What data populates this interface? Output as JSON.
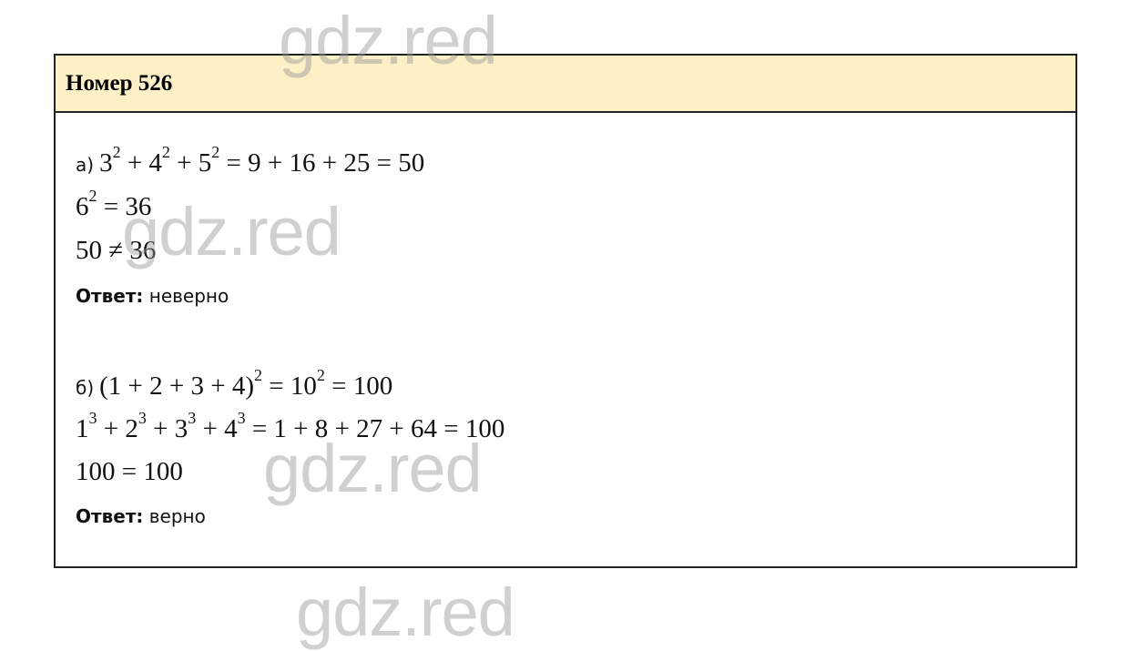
{
  "header": {
    "title": "Номер 526"
  },
  "parts": [
    {
      "label": "а)",
      "lines": [
        [
          {
            "t": "3",
            "sup": "2"
          },
          {
            "t": " + 4",
            "sup": "2"
          },
          {
            "t": " + 5",
            "sup": "2"
          },
          {
            "t": " = 9 + 16 + 25 = 50"
          }
        ],
        [
          {
            "t": "6",
            "sup": "2"
          },
          {
            "t": " = 36"
          }
        ],
        [
          {
            "t": "50 ≠ 36"
          }
        ]
      ],
      "answer_label": "Ответ:",
      "answer_value": "неверно"
    },
    {
      "label": "б)",
      "lines": [
        [
          {
            "t": "(1 + 2 + 3 + 4)",
            "sup": "2"
          },
          {
            "t": " = 10",
            "sup": "2"
          },
          {
            "t": " = 100"
          }
        ],
        [
          {
            "t": "1",
            "sup": "3"
          },
          {
            "t": " + 2",
            "sup": "3"
          },
          {
            "t": " + 3",
            "sup": "3"
          },
          {
            "t": " + 4",
            "sup": "3"
          },
          {
            "t": " = 1 + 8 + 27 + 64 = 100"
          }
        ],
        [
          {
            "t": "100 = 100"
          }
        ]
      ],
      "answer_label": "Ответ:",
      "answer_value": "верно"
    }
  ],
  "watermark": "gdz.red",
  "colors": {
    "header_bg": "#fdefc6",
    "border": "#222222",
    "watermark": "#969696"
  }
}
